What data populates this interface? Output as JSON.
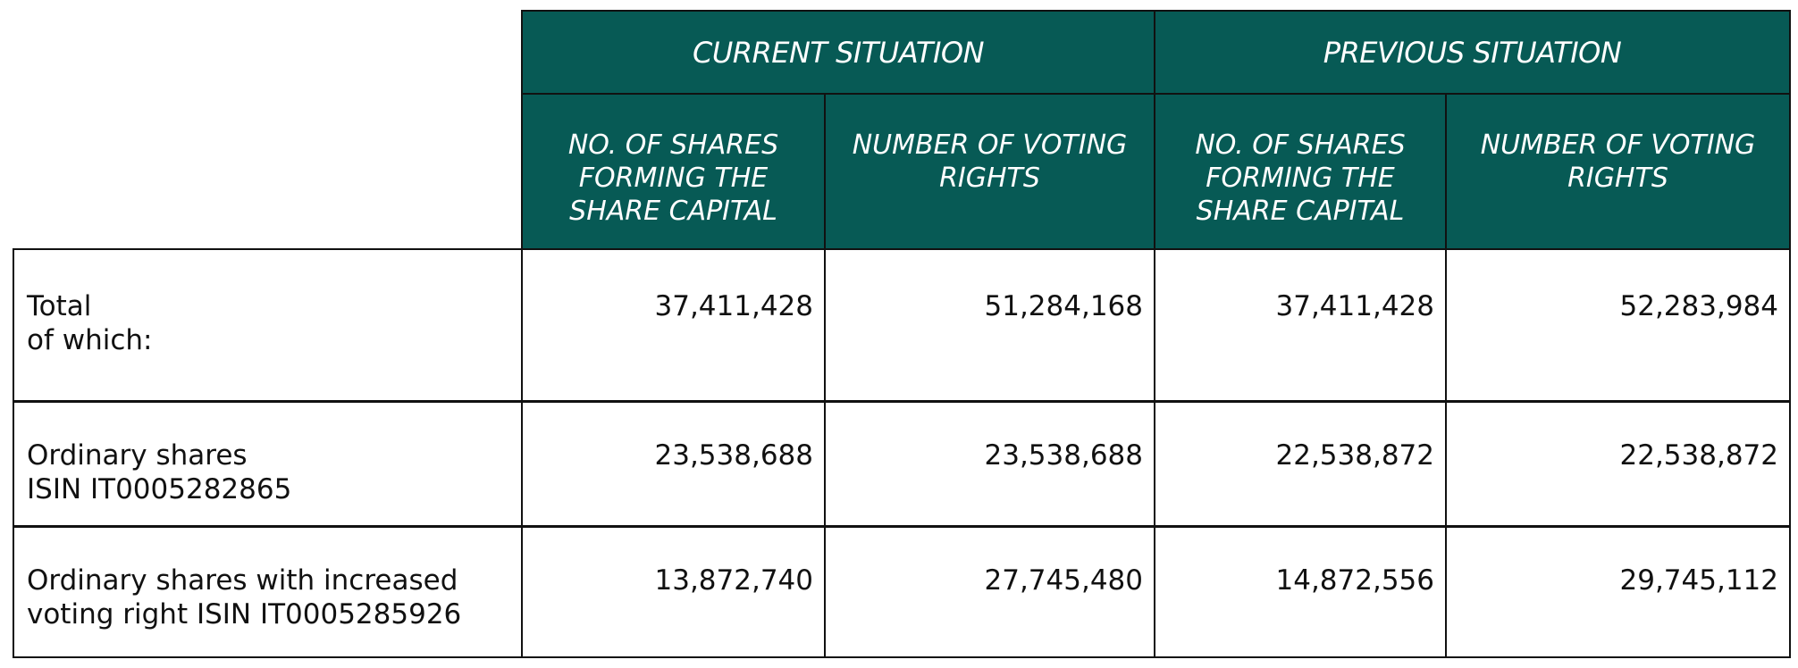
{
  "header": {
    "groups": [
      "CURRENT SITUATION",
      "PREVIOUS SITUATION"
    ],
    "columns": [
      "NO. OF SHARES FORMING THE SHARE CAPITAL",
      "NUMBER OF VOTING RIGHTS",
      "NO. OF SHARES FORMING THE SHARE CAPITAL",
      "NUMBER OF VOTING RIGHTS"
    ]
  },
  "rows": [
    {
      "label": "Total\nof which:",
      "values": [
        "37,411,428",
        "51,284,168",
        "37,411,428",
        "52,283,984"
      ]
    },
    {
      "label": "Ordinary shares\nISIN IT0005282865",
      "values": [
        "23,538,688",
        "23,538,688",
        "22,538,872",
        "22,538,872"
      ]
    },
    {
      "label": "Ordinary shares with increased\nvoting right ISIN IT0005285926",
      "values": [
        "13,872,740",
        "27,745,480",
        "14,872,556",
        "29,745,112"
      ]
    }
  ],
  "colors": {
    "header_bg": "#075a55",
    "header_text": "#ffffff",
    "border": "#111111"
  }
}
